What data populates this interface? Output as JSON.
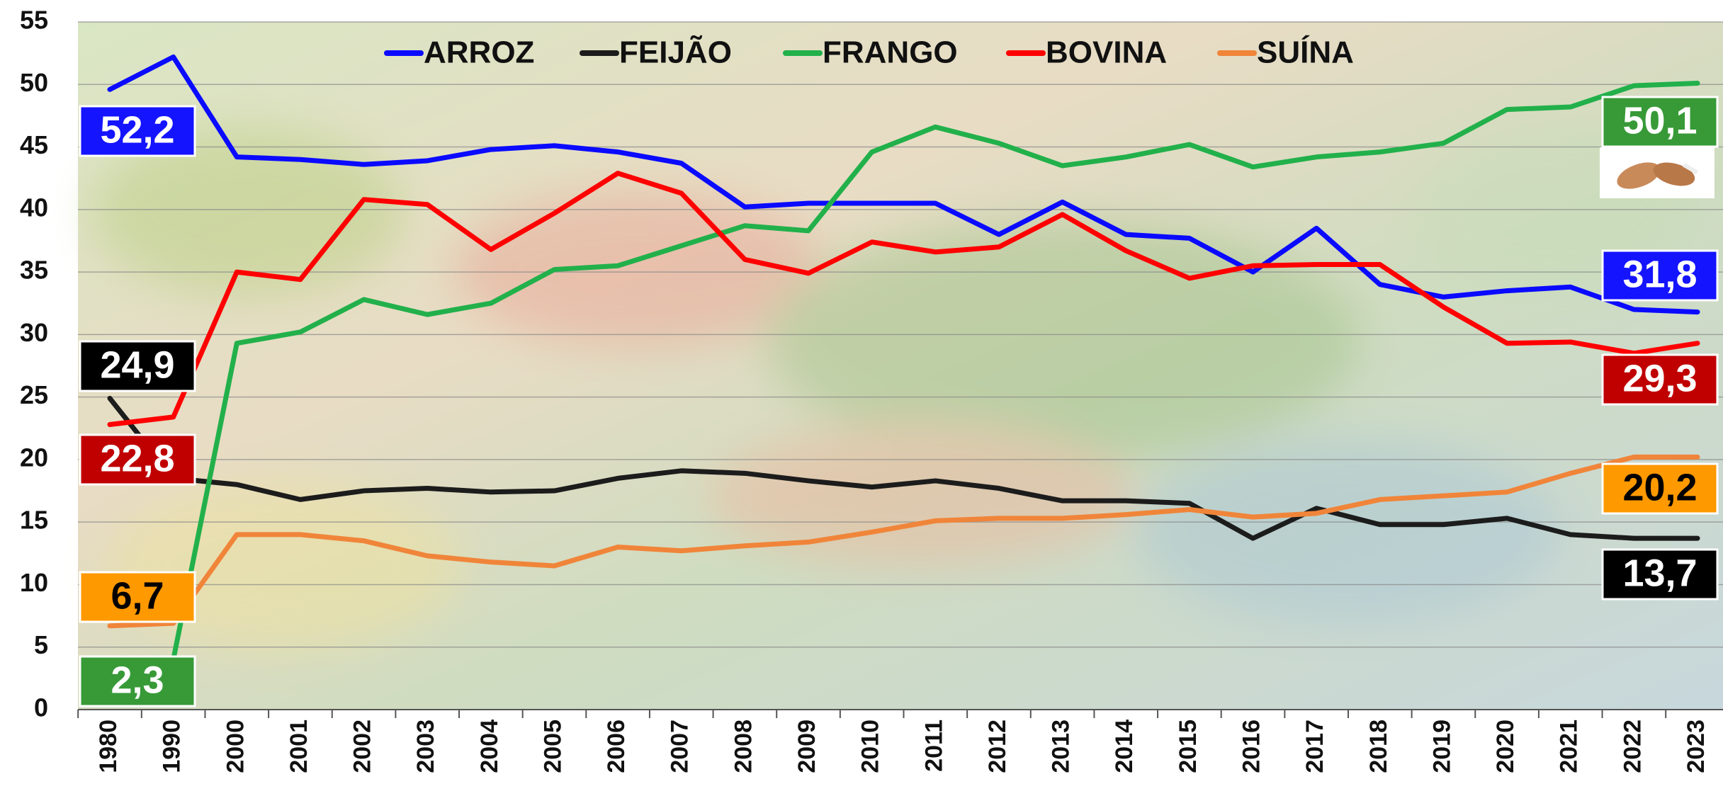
{
  "chart_data": {
    "type": "line",
    "categories": [
      "1980",
      "1990",
      "2000",
      "2001",
      "2002",
      "2003",
      "2004",
      "2005",
      "2006",
      "2007",
      "2008",
      "2009",
      "2010",
      "2011",
      "2012",
      "2013",
      "2014",
      "2015",
      "2016",
      "2017",
      "2018",
      "2019",
      "2020",
      "2021",
      "2022",
      "2023"
    ],
    "series": [
      {
        "name": "ARROZ",
        "color": "#0a0aff",
        "label_color": "#1414ff",
        "values": [
          49.6,
          52.2,
          44.2,
          44.0,
          43.6,
          43.9,
          44.8,
          45.1,
          44.6,
          43.7,
          40.2,
          40.5,
          40.5,
          40.5,
          38.0,
          40.6,
          38.0,
          37.7,
          35.0,
          38.5,
          34.0,
          33.0,
          33.5,
          33.8,
          32.0,
          31.8
        ],
        "value_labels": [
          null,
          "52,2",
          null,
          null,
          null,
          null,
          null,
          null,
          null,
          null,
          null,
          null,
          null,
          null,
          null,
          null,
          null,
          null,
          null,
          null,
          null,
          null,
          null,
          null,
          null,
          "31,8"
        ]
      },
      {
        "name": "FEIJÃO",
        "color": "#1c1c1c",
        "label_color": "#000000",
        "values": [
          24.9,
          18.5,
          18.0,
          16.8,
          17.5,
          17.7,
          17.4,
          17.5,
          18.5,
          19.1,
          18.9,
          18.3,
          17.8,
          18.3,
          17.7,
          16.7,
          16.7,
          16.5,
          13.7,
          16.1,
          14.8,
          14.8,
          15.3,
          14.0,
          13.7,
          13.7
        ],
        "value_labels": [
          "24,9",
          null,
          null,
          null,
          null,
          null,
          null,
          null,
          null,
          null,
          null,
          null,
          null,
          null,
          null,
          null,
          null,
          null,
          null,
          null,
          null,
          null,
          null,
          null,
          null,
          "13,7"
        ]
      },
      {
        "name": "FRANGO",
        "color": "#22b04b",
        "label_color": "#379a37",
        "values": [
          2.3,
          4.0,
          29.3,
          30.2,
          32.8,
          31.6,
          32.5,
          35.2,
          35.5,
          37.1,
          38.7,
          38.3,
          44.6,
          46.6,
          45.3,
          43.5,
          44.2,
          45.2,
          43.4,
          44.2,
          44.6,
          45.3,
          48.0,
          48.2,
          49.9,
          50.1
        ],
        "value_labels": [
          "2,3",
          null,
          null,
          null,
          null,
          null,
          null,
          null,
          null,
          null,
          null,
          null,
          null,
          null,
          null,
          null,
          null,
          null,
          null,
          null,
          null,
          null,
          null,
          null,
          null,
          "50,1"
        ]
      },
      {
        "name": "BOVINA",
        "color": "#ff0000",
        "label_color": "#c00000",
        "values": [
          22.8,
          23.4,
          35.0,
          34.4,
          40.8,
          40.4,
          36.8,
          39.7,
          42.9,
          41.3,
          36.0,
          34.9,
          37.4,
          36.6,
          37.0,
          39.6,
          36.7,
          34.5,
          35.5,
          35.6,
          35.6,
          32.2,
          29.3,
          29.4,
          28.5,
          29.3
        ],
        "value_labels": [
          "22,8",
          null,
          null,
          null,
          null,
          null,
          null,
          null,
          null,
          null,
          null,
          null,
          null,
          null,
          null,
          null,
          null,
          null,
          null,
          null,
          null,
          null,
          null,
          null,
          null,
          "29,3"
        ]
      },
      {
        "name": "SUÍNA",
        "color": "#f0853a",
        "label_color": "#ff9900",
        "values": [
          6.7,
          6.9,
          14.0,
          14.0,
          13.5,
          12.3,
          11.8,
          11.5,
          13.0,
          12.7,
          13.1,
          13.4,
          14.2,
          15.1,
          15.3,
          15.3,
          15.6,
          16.0,
          15.4,
          15.7,
          16.8,
          17.1,
          17.4,
          18.9,
          20.2,
          20.2
        ],
        "value_labels": [
          "6,7",
          null,
          null,
          null,
          null,
          null,
          null,
          null,
          null,
          null,
          null,
          null,
          null,
          null,
          null,
          null,
          null,
          null,
          null,
          null,
          null,
          null,
          null,
          null,
          null,
          "20,2"
        ]
      }
    ],
    "ylim": [
      0,
      55
    ],
    "yticks": [
      0,
      5,
      10,
      15,
      20,
      25,
      30,
      35,
      40,
      45,
      50,
      55
    ],
    "grid": true
  }
}
